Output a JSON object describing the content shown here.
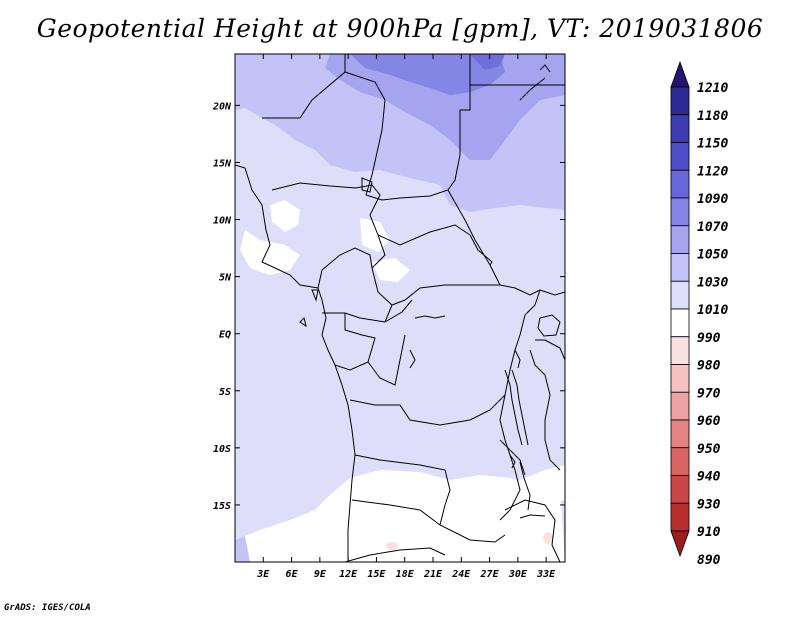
{
  "title": "Geopotential Height at 900hPa [gpm], VT: 2019031806",
  "credit": "GrADS: IGES/COLA",
  "map": {
    "lat_labels": [
      "20N",
      "15N",
      "10N",
      "5N",
      "EQ",
      "5S",
      "10S",
      "15S"
    ],
    "lon_labels": [
      "3E",
      "6E",
      "9E",
      "12E",
      "15E",
      "18E",
      "21E",
      "24E",
      "27E",
      "30E",
      "33E"
    ],
    "lon_range": [
      0,
      35
    ],
    "lat_range": [
      -20,
      24.5
    ]
  },
  "colorbar": {
    "labels": [
      "1210",
      "1180",
      "1150",
      "1120",
      "1090",
      "1070",
      "1050",
      "1030",
      "1010",
      "990",
      "980",
      "970",
      "960",
      "950",
      "940",
      "930",
      "910",
      "890"
    ],
    "colors": [
      "#24166f",
      "#2d2a95",
      "#3d3cb1",
      "#4f4ec8",
      "#6767d9",
      "#8585e6",
      "#a4a4ef",
      "#c3c3f7",
      "#dedefb",
      "#ffffff",
      "#fbe0e0",
      "#f6c2c2",
      "#eea3a3",
      "#e48383",
      "#d86464",
      "#ca4646",
      "#b82e2e",
      "#9a1e1e"
    ]
  }
}
